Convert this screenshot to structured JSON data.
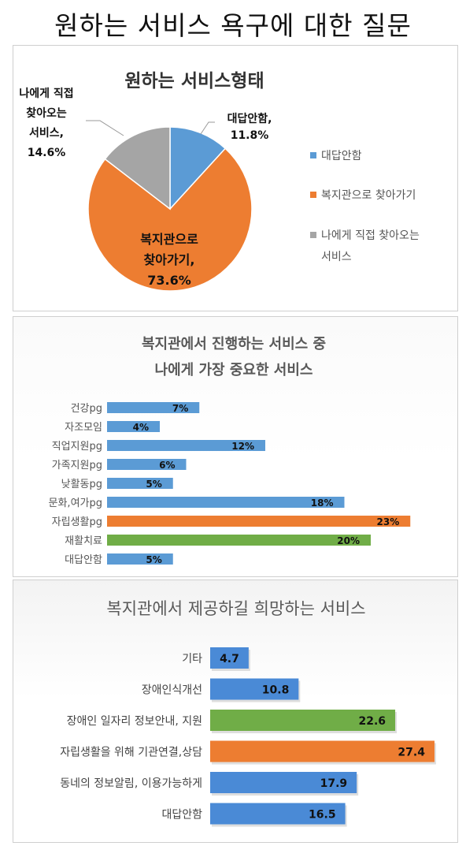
{
  "page_title": "원하는 서비스 욕구에 대한 질문",
  "colors": {
    "blue": "#5B9BD5",
    "orange": "#ED7D31",
    "gray": "#A5A5A5",
    "green": "#70AD47",
    "bar_blue": "#4A8AD6"
  },
  "chart_data": [
    {
      "type": "pie",
      "title": "원하는 서비스형태",
      "categories": [
        "대답안함",
        "복지관으로 찾아가기",
        "나에게 직접 찾아오는 서비스"
      ],
      "values": [
        11.8,
        73.6,
        14.6
      ],
      "unit": "%",
      "data_labels": [
        [
          "대답안함,",
          "11.8%"
        ],
        [
          "복지관으로",
          "찾아가기,",
          "73.6%"
        ],
        [
          "나에게 직접",
          "찾아오는",
          "서비스,",
          "14.6%"
        ]
      ],
      "legend": [
        [
          "대답안함"
        ],
        [
          "복지관으로 찾아가기"
        ],
        [
          "나에게 직접 찾아오는",
          "서비스"
        ]
      ],
      "legend_position": "right",
      "colors": [
        "#5B9BD5",
        "#ED7D31",
        "#A5A5A5"
      ]
    },
    {
      "type": "bar",
      "orientation": "horizontal",
      "title": [
        "복지관에서 진행하는 서비스 중",
        "나에게 가장 중요한 서비스"
      ],
      "categories": [
        "건강pg",
        "자조모임",
        "직업지원pg",
        "가족지원pg",
        "낮활동pg",
        "문화,여가pg",
        "자립생활pg",
        "재활치료",
        "대답안함"
      ],
      "values": [
        7,
        4,
        12,
        6,
        5,
        18,
        23,
        20,
        5
      ],
      "value_labels": [
        "7%",
        "4%",
        "12%",
        "6%",
        "5%",
        "18%",
        "23%",
        "20%",
        "5%"
      ],
      "bar_colors": [
        "#5B9BD5",
        "#5B9BD5",
        "#5B9BD5",
        "#5B9BD5",
        "#5B9BD5",
        "#5B9BD5",
        "#ED7D31",
        "#70AD47",
        "#5B9BD5"
      ],
      "xlim": [
        0,
        25
      ],
      "grid": false
    },
    {
      "type": "bar",
      "orientation": "horizontal",
      "title": "복지관에서 제공하길 희망하는 서비스",
      "categories": [
        "기타",
        "장애인식개선",
        "장애인 일자리 정보안내, 지원",
        "자립생활을 위해 기관연결,상담",
        "동네의 정보알림, 이용가능하게",
        "대답안함"
      ],
      "values": [
        4.7,
        10.8,
        22.6,
        27.4,
        17.9,
        16.5
      ],
      "value_labels": [
        "4.7",
        "10.8",
        "22.6",
        "27.4",
        "17.9",
        "16.5"
      ],
      "bar_colors": [
        "#4A8AD6",
        "#4A8AD6",
        "#70AD47",
        "#ED7D31",
        "#4A8AD6",
        "#4A8AD6"
      ],
      "xlim": [
        0,
        30
      ],
      "grid": false
    }
  ]
}
